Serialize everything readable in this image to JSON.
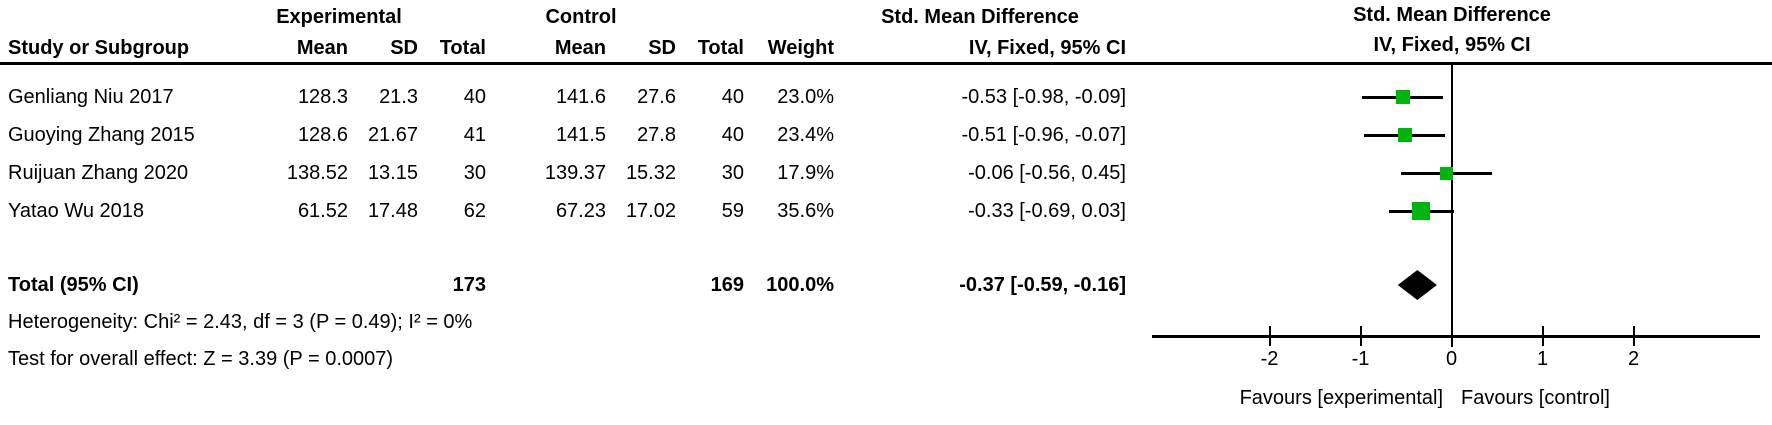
{
  "figure": {
    "group_headers": {
      "experimental": "Experimental",
      "control": "Control",
      "smd_table": "Std. Mean Difference",
      "smd_plot": "Std. Mean Difference"
    },
    "col_headers": {
      "study": "Study or Subgroup",
      "mean": "Mean",
      "sd": "SD",
      "total": "Total",
      "weight": "Weight",
      "iv_fixed_table": "IV, Fixed, 95% CI",
      "iv_fixed_plot": "IV, Fixed, 95% CI"
    },
    "rows": [
      {
        "study": "Genliang Niu 2017",
        "mean1": "128.3",
        "sd1": "21.3",
        "total1": "40",
        "mean2": "141.6",
        "sd2": "27.6",
        "total2": "40",
        "weight": "23.0%",
        "ci_text": "-0.53 [-0.98, -0.09]",
        "smd": -0.53,
        "ci_low": -0.98,
        "ci_high": -0.09,
        "marker_size": 14
      },
      {
        "study": "Guoying Zhang 2015",
        "mean1": "128.6",
        "sd1": "21.67",
        "total1": "41",
        "mean2": "141.5",
        "sd2": "27.8",
        "total2": "40",
        "weight": "23.4%",
        "ci_text": "-0.51 [-0.96, -0.07]",
        "smd": -0.51,
        "ci_low": -0.96,
        "ci_high": -0.07,
        "marker_size": 14
      },
      {
        "study": "Ruijuan Zhang 2020",
        "mean1": "138.52",
        "sd1": "13.15",
        "total1": "30",
        "mean2": "139.37",
        "sd2": "15.32",
        "total2": "30",
        "weight": "17.9%",
        "ci_text": "-0.06 [-0.56, 0.45]",
        "smd": -0.06,
        "ci_low": -0.56,
        "ci_high": 0.45,
        "marker_size": 13
      },
      {
        "study": "Yatao Wu 2018",
        "mean1": "61.52",
        "sd1": "17.48",
        "total1": "62",
        "mean2": "67.23",
        "sd2": "17.02",
        "total2": "59",
        "weight": "35.6%",
        "ci_text": "-0.33 [-0.69, 0.03]",
        "smd": -0.33,
        "ci_low": -0.69,
        "ci_high": 0.03,
        "marker_size": 18
      }
    ],
    "total_row": {
      "label": "Total (95% CI)",
      "total1": "173",
      "total2": "169",
      "weight": "100.0%",
      "ci_text": "-0.37 [-0.59, -0.16]",
      "smd": -0.37,
      "ci_low": -0.59,
      "ci_high": -0.16
    },
    "footnotes": {
      "heterogeneity": "Heterogeneity: Chi² = 2.43, df = 3 (P = 0.49); I² = 0%",
      "overall_effect": "Test for overall effect: Z = 3.39 (P = 0.0007)"
    },
    "axis": {
      "tick_labels": [
        "-2",
        "-1",
        "0",
        "1",
        "2"
      ],
      "tick_values": [
        -2,
        -1,
        0,
        1,
        2
      ],
      "favours_left": "Favours [experimental]",
      "favours_right": "Favours [control]"
    },
    "colors": {
      "marker_green": "#00b30e",
      "ink": "#000000"
    }
  },
  "chart_data": {
    "type": "forest",
    "effect_measure": "Std. Mean Difference",
    "method": "IV, Fixed, 95% CI",
    "studies": [
      {
        "name": "Genliang Niu 2017",
        "exp_mean": 128.3,
        "exp_sd": 21.3,
        "exp_n": 40,
        "ctl_mean": 141.6,
        "ctl_sd": 27.6,
        "ctl_n": 40,
        "weight_pct": 23.0,
        "smd": -0.53,
        "ci": [
          -0.98,
          -0.09
        ]
      },
      {
        "name": "Guoying Zhang 2015",
        "exp_mean": 128.6,
        "exp_sd": 21.67,
        "exp_n": 41,
        "ctl_mean": 141.5,
        "ctl_sd": 27.8,
        "ctl_n": 40,
        "weight_pct": 23.4,
        "smd": -0.51,
        "ci": [
          -0.96,
          -0.07
        ]
      },
      {
        "name": "Ruijuan Zhang 2020",
        "exp_mean": 138.52,
        "exp_sd": 13.15,
        "exp_n": 30,
        "ctl_mean": 139.37,
        "ctl_sd": 15.32,
        "ctl_n": 30,
        "weight_pct": 17.9,
        "smd": -0.06,
        "ci": [
          -0.56,
          0.45
        ]
      },
      {
        "name": "Yatao Wu 2018",
        "exp_mean": 61.52,
        "exp_sd": 17.48,
        "exp_n": 62,
        "ctl_mean": 67.23,
        "ctl_sd": 17.02,
        "ctl_n": 59,
        "weight_pct": 35.6,
        "smd": -0.33,
        "ci": [
          -0.69,
          0.03
        ]
      }
    ],
    "total": {
      "exp_n": 173,
      "ctl_n": 169,
      "weight_pct": 100.0,
      "smd": -0.37,
      "ci": [
        -0.59,
        -0.16
      ]
    },
    "heterogeneity": {
      "chi2": 2.43,
      "df": 3,
      "p": 0.49,
      "i2_pct": 0
    },
    "overall_effect": {
      "z": 3.39,
      "p": 0.0007
    },
    "xlim": [
      -2,
      2
    ],
    "x_ticks": [
      -2,
      -1,
      0,
      1,
      2
    ],
    "xlabel_left": "Favours [experimental]",
    "xlabel_right": "Favours [control]"
  }
}
